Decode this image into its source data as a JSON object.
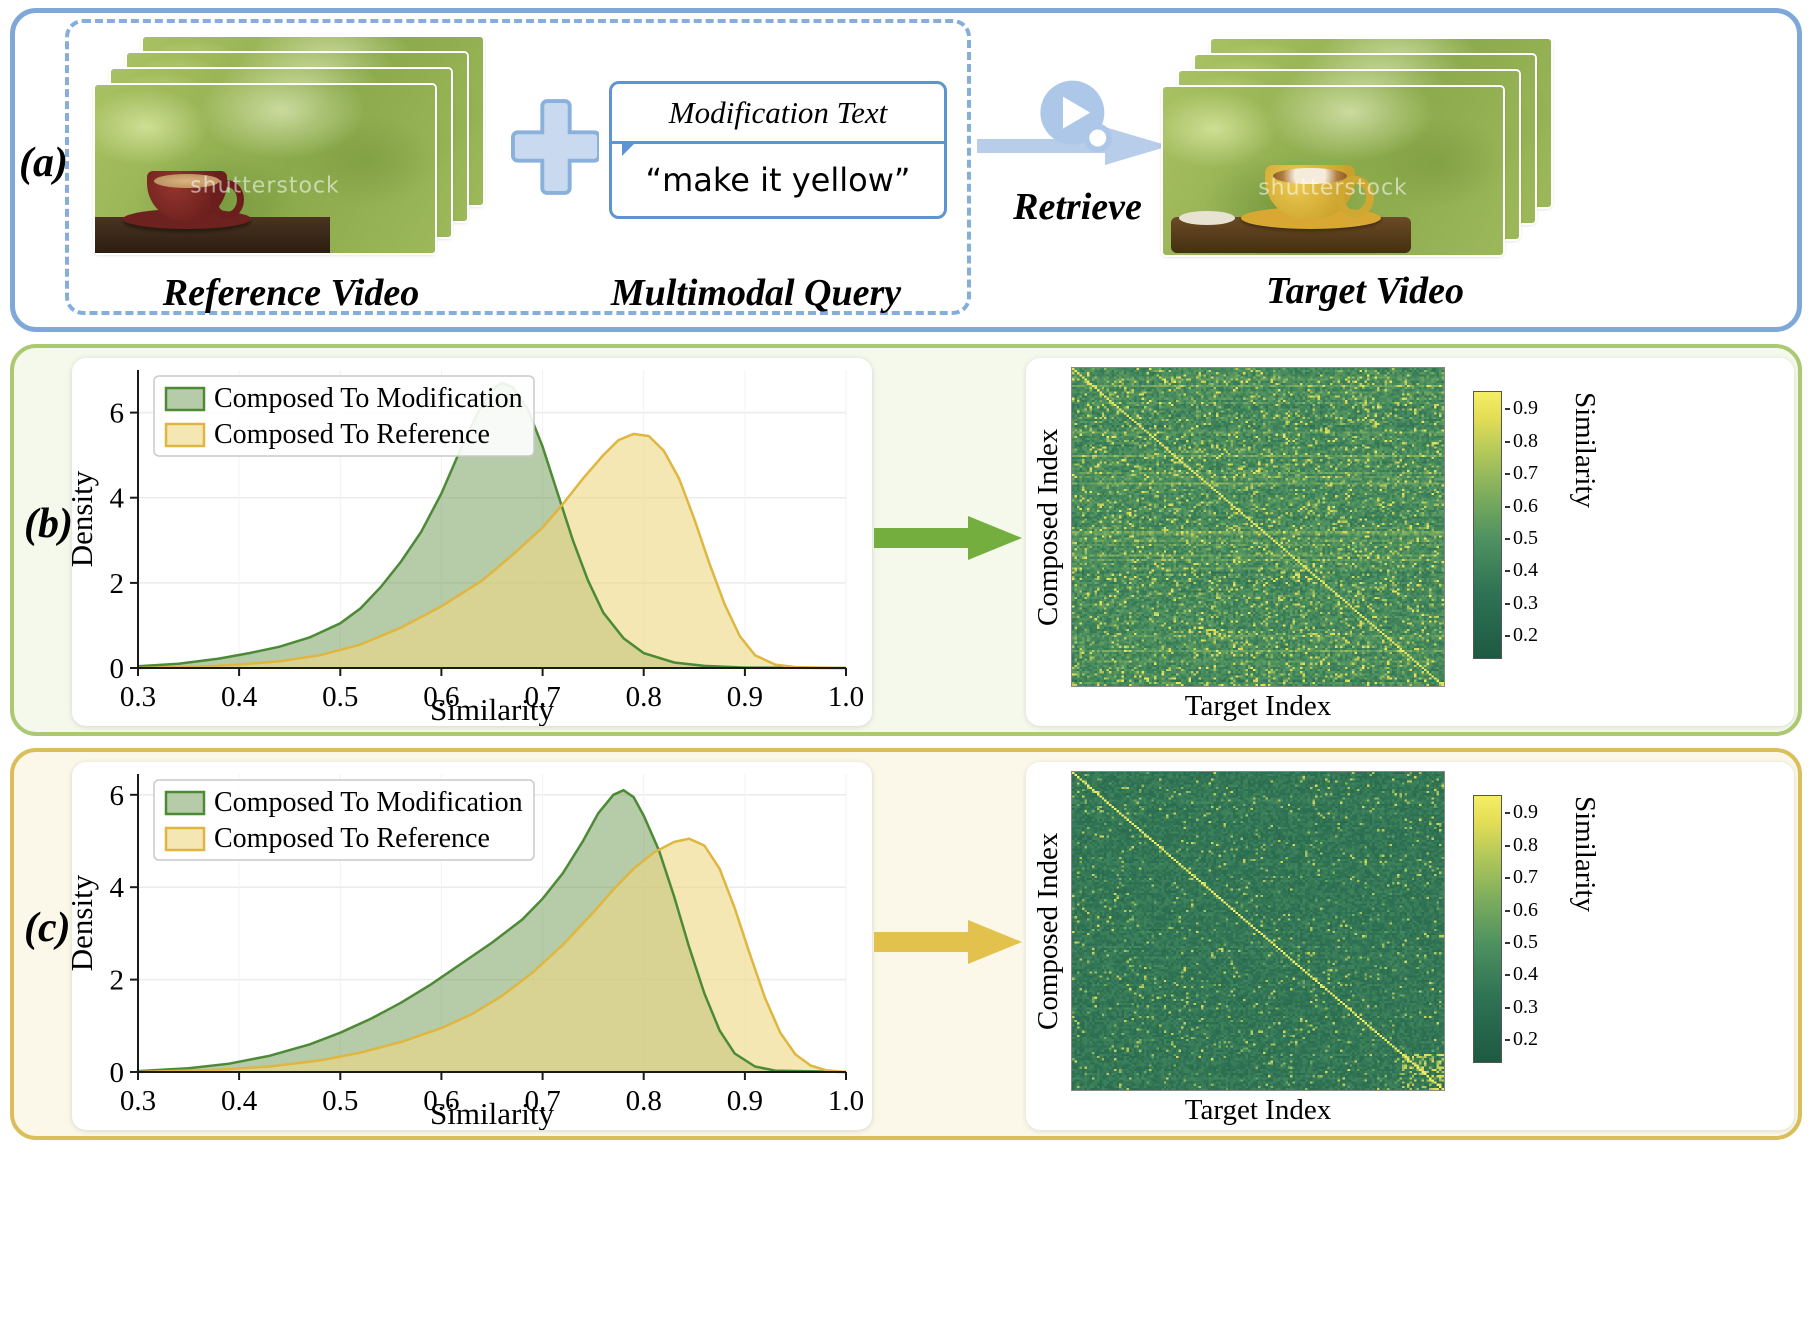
{
  "panel_a": {
    "label": "(a)",
    "border_color": "#7fa8d9",
    "reference_video": {
      "caption": "Reference Video",
      "watermark": "shutterstock",
      "frame_count": 4
    },
    "modification_box": {
      "title": "Modification Text",
      "text": "“make it yellow”"
    },
    "multimodal_query_label": "Multimodal Query",
    "retrieve_label": "Retrieve",
    "target_video": {
      "caption": "Target Video",
      "watermark": "shutterstock",
      "frame_count": 4
    }
  },
  "panel_b": {
    "label": "(b)",
    "border_color": "#abc972",
    "background": "#f5f9eb",
    "arrow_color": "#74ae3e"
  },
  "panel_c": {
    "label": "(c)",
    "border_color": "#d9be5a",
    "background": "#fbf8e9",
    "arrow_color": "#e2c14c"
  },
  "chart_data": [
    {
      "id": "density_b",
      "type": "area",
      "panel": "b",
      "xlabel": "Similarity",
      "ylabel": "Density",
      "xlim": [
        0.3,
        1.0
      ],
      "ylim": [
        0,
        7.0
      ],
      "xticks": [
        0.3,
        0.4,
        0.5,
        0.6,
        0.7,
        0.8,
        0.9,
        1.0
      ],
      "yticks": [
        0,
        2,
        4,
        6
      ],
      "grid": true,
      "legend_position": "upper left",
      "series": [
        {
          "name": "Composed To Modification",
          "line_color": "#4c8a36",
          "fill_color": "rgba(110,152,82,0.5)",
          "points": [
            [
              0.3,
              0.04
            ],
            [
              0.34,
              0.1
            ],
            [
              0.38,
              0.22
            ],
            [
              0.41,
              0.35
            ],
            [
              0.44,
              0.5
            ],
            [
              0.47,
              0.72
            ],
            [
              0.5,
              1.05
            ],
            [
              0.52,
              1.4
            ],
            [
              0.54,
              1.9
            ],
            [
              0.56,
              2.5
            ],
            [
              0.58,
              3.2
            ],
            [
              0.6,
              4.1
            ],
            [
              0.62,
              5.2
            ],
            [
              0.635,
              5.95
            ],
            [
              0.65,
              6.55
            ],
            [
              0.66,
              6.7
            ],
            [
              0.67,
              6.6
            ],
            [
              0.685,
              6.1
            ],
            [
              0.7,
              5.2
            ],
            [
              0.715,
              4.1
            ],
            [
              0.73,
              3.0
            ],
            [
              0.745,
              2.05
            ],
            [
              0.76,
              1.3
            ],
            [
              0.78,
              0.7
            ],
            [
              0.8,
              0.35
            ],
            [
              0.83,
              0.13
            ],
            [
              0.86,
              0.05
            ],
            [
              0.9,
              0.01
            ],
            [
              1.0,
              0.0
            ]
          ]
        },
        {
          "name": "Composed To Reference",
          "line_color": "#dfb640",
          "fill_color": "rgba(238,216,132,0.62)",
          "points": [
            [
              0.3,
              0.0
            ],
            [
              0.36,
              0.03
            ],
            [
              0.4,
              0.08
            ],
            [
              0.44,
              0.16
            ],
            [
              0.48,
              0.3
            ],
            [
              0.52,
              0.55
            ],
            [
              0.56,
              0.95
            ],
            [
              0.6,
              1.45
            ],
            [
              0.64,
              2.05
            ],
            [
              0.67,
              2.65
            ],
            [
              0.7,
              3.3
            ],
            [
              0.72,
              3.85
            ],
            [
              0.74,
              4.45
            ],
            [
              0.76,
              5.0
            ],
            [
              0.775,
              5.35
            ],
            [
              0.79,
              5.5
            ],
            [
              0.805,
              5.45
            ],
            [
              0.82,
              5.1
            ],
            [
              0.835,
              4.45
            ],
            [
              0.85,
              3.5
            ],
            [
              0.865,
              2.45
            ],
            [
              0.88,
              1.5
            ],
            [
              0.895,
              0.75
            ],
            [
              0.91,
              0.3
            ],
            [
              0.93,
              0.08
            ],
            [
              0.95,
              0.02
            ],
            [
              1.0,
              0.0
            ]
          ]
        }
      ]
    },
    {
      "id": "heatmap_b",
      "type": "heatmap",
      "panel": "b",
      "xlabel": "Target Index",
      "ylabel": "Composed Index",
      "colorbar_label": "Similarity",
      "colorbar_ticks": [
        0.9,
        0.8,
        0.7,
        0.6,
        0.5,
        0.4,
        0.3,
        0.2
      ],
      "value_range": [
        0.13,
        0.95
      ],
      "grid_size": 150,
      "seed": 42,
      "base_value": 0.44,
      "noise": 0.1,
      "row_streak": 0.11,
      "speckle_prob": 0.13,
      "speckle_range": [
        0.6,
        0.92
      ],
      "diagonal_value": 0.88,
      "corner_cluster": false,
      "description": "Similarity matrix between composed queries and target videos; bright diagonal marks matched pairs, dense yellow speckles elsewhere",
      "colormap_stops": [
        [
          0.0,
          "#1d5a43"
        ],
        [
          0.25,
          "#2f7355"
        ],
        [
          0.45,
          "#4f9260"
        ],
        [
          0.62,
          "#7fae5d"
        ],
        [
          0.78,
          "#b5c95a"
        ],
        [
          0.9,
          "#e2dd55"
        ],
        [
          1.0,
          "#f5ef64"
        ]
      ]
    },
    {
      "id": "density_c",
      "type": "area",
      "panel": "c",
      "xlabel": "Similarity",
      "ylabel": "Density",
      "xlim": [
        0.3,
        1.0
      ],
      "ylim": [
        0,
        6.45
      ],
      "xticks": [
        0.3,
        0.4,
        0.5,
        0.6,
        0.7,
        0.8,
        0.9,
        1.0
      ],
      "yticks": [
        0,
        2,
        4,
        6
      ],
      "grid": true,
      "legend_position": "upper left",
      "series": [
        {
          "name": "Composed To Modification",
          "line_color": "#4c8a36",
          "fill_color": "rgba(110,152,82,0.5)",
          "points": [
            [
              0.3,
              0.02
            ],
            [
              0.35,
              0.08
            ],
            [
              0.39,
              0.18
            ],
            [
              0.43,
              0.35
            ],
            [
              0.47,
              0.6
            ],
            [
              0.5,
              0.85
            ],
            [
              0.53,
              1.15
            ],
            [
              0.56,
              1.5
            ],
            [
              0.59,
              1.9
            ],
            [
              0.62,
              2.35
            ],
            [
              0.65,
              2.8
            ],
            [
              0.68,
              3.3
            ],
            [
              0.7,
              3.75
            ],
            [
              0.72,
              4.3
            ],
            [
              0.74,
              5.0
            ],
            [
              0.755,
              5.6
            ],
            [
              0.77,
              6.0
            ],
            [
              0.78,
              6.1
            ],
            [
              0.79,
              5.95
            ],
            [
              0.8,
              5.55
            ],
            [
              0.815,
              4.8
            ],
            [
              0.83,
              3.8
            ],
            [
              0.845,
              2.7
            ],
            [
              0.86,
              1.7
            ],
            [
              0.875,
              0.9
            ],
            [
              0.89,
              0.4
            ],
            [
              0.91,
              0.12
            ],
            [
              0.93,
              0.03
            ],
            [
              1.0,
              0.0
            ]
          ]
        },
        {
          "name": "Composed To Reference",
          "line_color": "#dfb640",
          "fill_color": "rgba(238,216,132,0.62)",
          "points": [
            [
              0.3,
              0.0
            ],
            [
              0.38,
              0.05
            ],
            [
              0.43,
              0.12
            ],
            [
              0.48,
              0.25
            ],
            [
              0.52,
              0.42
            ],
            [
              0.56,
              0.65
            ],
            [
              0.6,
              0.95
            ],
            [
              0.63,
              1.25
            ],
            [
              0.66,
              1.65
            ],
            [
              0.69,
              2.15
            ],
            [
              0.72,
              2.75
            ],
            [
              0.75,
              3.45
            ],
            [
              0.77,
              3.95
            ],
            [
              0.79,
              4.4
            ],
            [
              0.81,
              4.75
            ],
            [
              0.83,
              4.98
            ],
            [
              0.845,
              5.05
            ],
            [
              0.86,
              4.9
            ],
            [
              0.875,
              4.4
            ],
            [
              0.89,
              3.55
            ],
            [
              0.905,
              2.55
            ],
            [
              0.92,
              1.6
            ],
            [
              0.935,
              0.85
            ],
            [
              0.95,
              0.38
            ],
            [
              0.965,
              0.14
            ],
            [
              0.98,
              0.04
            ],
            [
              1.0,
              0.0
            ]
          ]
        }
      ]
    },
    {
      "id": "heatmap_c",
      "type": "heatmap",
      "panel": "c",
      "xlabel": "Target Index",
      "ylabel": "Composed Index",
      "colorbar_label": "Similarity",
      "colorbar_ticks": [
        0.9,
        0.8,
        0.7,
        0.6,
        0.5,
        0.4,
        0.3,
        0.2
      ],
      "value_range": [
        0.13,
        0.95
      ],
      "grid_size": 150,
      "seed": 7,
      "base_value": 0.34,
      "noise": 0.08,
      "row_streak": 0.03,
      "speckle_prob": 0.05,
      "speckle_range": [
        0.55,
        0.85
      ],
      "diagonal_value": 0.93,
      "corner_cluster": true,
      "description": "Similarity matrix with a clean bright yellow diagonal on a darker green background; bright cluster near bottom-right corner",
      "colormap_stops": [
        [
          0.0,
          "#1d5a43"
        ],
        [
          0.25,
          "#2f7355"
        ],
        [
          0.45,
          "#4f9260"
        ],
        [
          0.62,
          "#7fae5d"
        ],
        [
          0.78,
          "#b5c95a"
        ],
        [
          0.9,
          "#e2dd55"
        ],
        [
          1.0,
          "#f5ef64"
        ]
      ]
    }
  ]
}
